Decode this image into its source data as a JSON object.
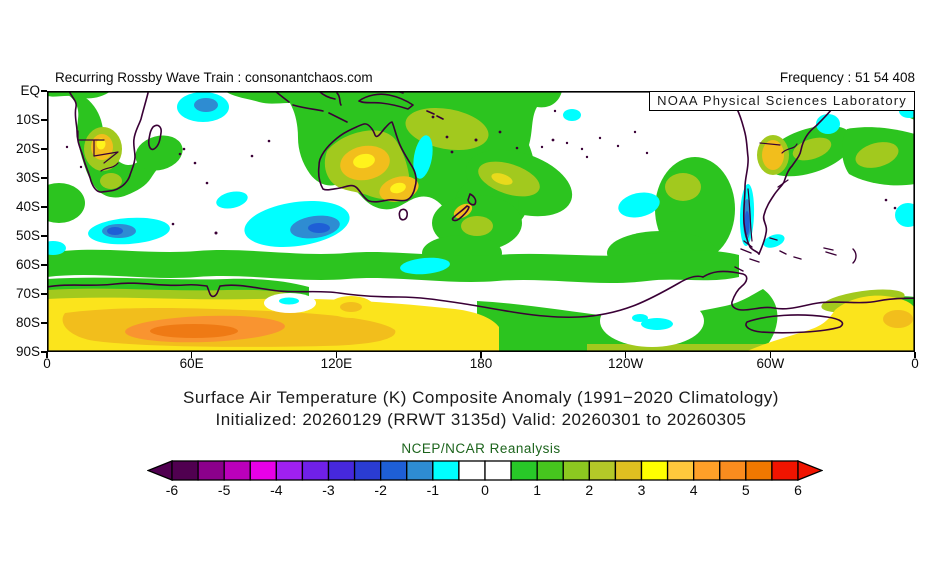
{
  "header": {
    "left": "Recurring Rossby Wave Train : consonantchaos.com",
    "right": "Frequency : 51 54 408"
  },
  "map": {
    "source_label": "NOAA Physical Sciences Laboratory"
  },
  "axes": {
    "y_ticks": [
      "EQ",
      "10S",
      "20S",
      "30S",
      "40S",
      "50S",
      "60S",
      "70S",
      "80S",
      "90S"
    ],
    "x_ticks": [
      "0",
      "60E",
      "120E",
      "180",
      "120W",
      "60W",
      "0"
    ]
  },
  "caption": {
    "title": "Surface Air Temperature (K) Composite Anomaly (1991−2020 Climatology)",
    "subtitle": "Initialized: 20260129 (RRWT 3135d) Valid: 20260301 to 20260305",
    "dataset_label": "NCEP/NCAR Reanalysis",
    "dataset_label_color": "#1c641c"
  },
  "colorbar": {
    "tick_labels": [
      "-6",
      "-5",
      "-4",
      "-3",
      "-2",
      "-1",
      "0",
      "1",
      "2",
      "3",
      "4",
      "5",
      "6"
    ],
    "segment_colors": [
      "#500050",
      "#8B008B",
      "#BB00BB",
      "#E800E8",
      "#A020F0",
      "#7020E8",
      "#4628DC",
      "#2A3CD2",
      "#1E5FD6",
      "#2E8CD2",
      "#00FFFF",
      "#FFFFFF",
      "#FFFFFF",
      "#28C828",
      "#46C61E",
      "#8CC820",
      "#B4C828",
      "#E0C020",
      "#FFFF00",
      "#FFC83C",
      "#FFA028",
      "#FA8C1E",
      "#F07800",
      "#F01400"
    ],
    "arrow_left_color": "#500050",
    "arrow_right_color": "#F01400"
  },
  "chart_data": {
    "type": "heatmap",
    "title": "Surface Air Temperature (K) Composite Anomaly (1991-2020 Climatology)",
    "subtitle": "Initialized: 20260129 (RRWT 3135d) Valid: 20260301 to 20260305",
    "dataset": "NCEP/NCAR Reanalysis",
    "source": "NOAA Physical Sciences Laboratory",
    "watermark": "Recurring Rossby Wave Train : consonantchaos.com",
    "frequency": "51 54 408",
    "variable": "Surface air temperature anomaly",
    "units": "K",
    "projection": "cylindrical lat-lon, Southern Hemisphere, 0-360E by EQ-90S",
    "lon_ticks": [
      "0",
      "60E",
      "120E",
      "180",
      "120W",
      "60W",
      "0"
    ],
    "lat_ticks": [
      "EQ",
      "10S",
      "20S",
      "30S",
      "40S",
      "50S",
      "60S",
      "70S",
      "80S",
      "90S"
    ],
    "colorbar_ticks": [
      -6,
      -5,
      -4,
      -3,
      -2,
      -1,
      0,
      1,
      2,
      3,
      4,
      5,
      6
    ],
    "contour_interval_K": 0.5,
    "colorbar_range": [
      -6,
      6
    ],
    "notable_features": [
      "Strong warm anomaly (+3 to +5 K, gold/orange) over East Antarctica ~0-100E, 72S-88S, peaking near 40-70E 82S",
      "Warm band (+1 to +3 K, yellow/gold) along most of the Antarctic interior 70S-90S, brightest again near 60W-20W 80S",
      "Circumpolar +0.5 to +1.5 K (green) band near 55-65S around the hemisphere",
      "+2 to +3.5 K (yellow) cores over western and southeastern interior Australia and near New Zealand",
      "+1 to +2.5 K patches over southwestern Africa (Namibia), subtropical South Pacific ~30S 170-140W, 110-90W, northern Argentina/Paraguay, and SE Brazil",
      "Cold anomalies (-1 to -2.5 K, cyan/blue) in central Indian Ocean ~100E 45S, SW Indian Ocean 20-45E 50S, ~5-10S 60-75E, SE Pacific ~125W 40S, and along coastal Chile/Drake Passage",
      "Near-zero (white) anomalies over most subtropical oceans, interior southern Africa, Argentina and the Weddell Sea sector"
    ]
  }
}
